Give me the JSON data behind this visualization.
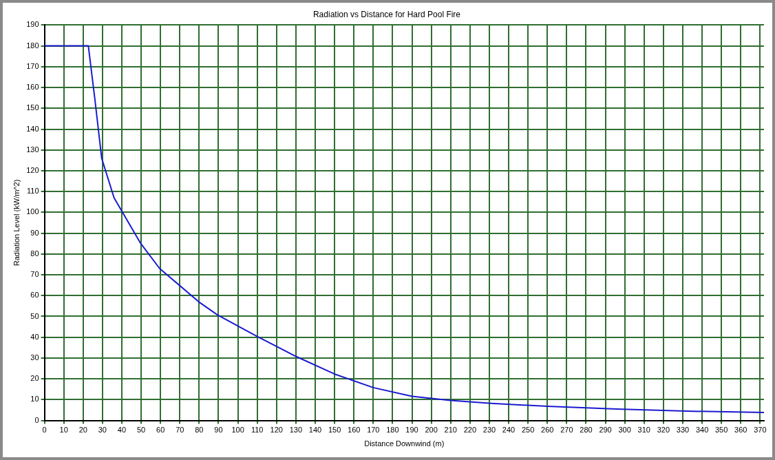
{
  "chart_data": {
    "type": "line",
    "title": "Radiation vs Distance for Hard Pool Fire",
    "xlabel": "Distance Downwind (m)",
    "ylabel": "Radiation Level (kW/m^2)",
    "series": [
      {
        "color": "#1a1ad0",
        "x": [
          0,
          22.7,
          26,
          29.6,
          36,
          49.8,
          59.6,
          79.8,
          89.5,
          110,
          130,
          150,
          170,
          190,
          210,
          231,
          260,
          296,
          332,
          372
        ],
        "values": [
          180,
          180,
          155,
          126,
          107,
          85,
          73,
          57,
          50.7,
          40.4,
          30.8,
          22.3,
          15.8,
          11.6,
          9.6,
          8.2,
          6.8,
          5.5,
          4.5,
          3.8
        ]
      }
    ],
    "xlim": [
      0,
      372
    ],
    "xticks": [
      0,
      10,
      20,
      30,
      40,
      50,
      60,
      70,
      80,
      90,
      100,
      110,
      120,
      130,
      140,
      150,
      160,
      170,
      180,
      190,
      200,
      210,
      220,
      230,
      240,
      250,
      260,
      270,
      280,
      290,
      300,
      310,
      320,
      330,
      340,
      350,
      360,
      370
    ],
    "ylim": [
      0,
      190
    ],
    "yticks": [
      0,
      10,
      20,
      30,
      40,
      50,
      60,
      70,
      80,
      90,
      100,
      110,
      120,
      130,
      140,
      150,
      160,
      170,
      180,
      190
    ],
    "grid": true,
    "legend": false,
    "marker": "none",
    "line_style": "solid"
  }
}
